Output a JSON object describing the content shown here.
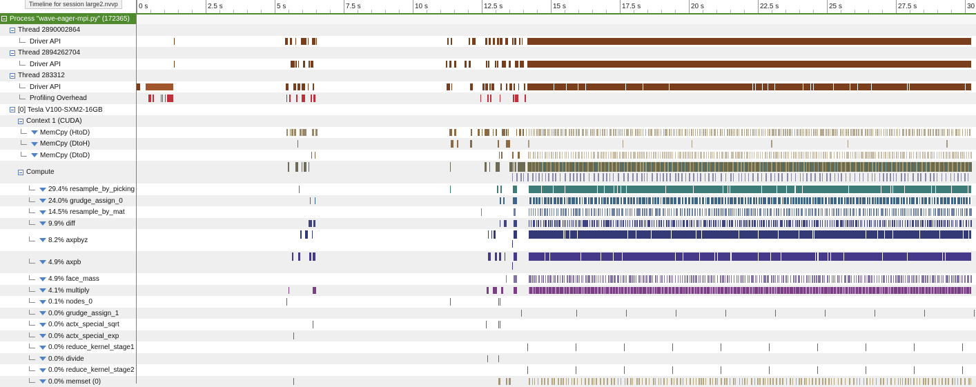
{
  "window": {
    "tooltip": "Timeline for session large2.nvvp"
  },
  "ruler": {
    "ticks": [
      "0 s",
      "2.5 s",
      "5 s",
      "7.5 s",
      "10 s",
      "12.5 s",
      "15 s",
      "17.5 s",
      "20 s",
      "22.5 s",
      "25 s",
      "27.5 s",
      "30 s"
    ]
  },
  "colors": {
    "process_header": "#4f8a2f",
    "driver_api": "#7a3e1d",
    "profiling_overhead": "#c0303a",
    "memcpy": "#b7a890",
    "compute": "#6d6a55",
    "resample_by_picking": "#3d7c78",
    "grudge_assign_0": "#3e6585",
    "resample_by_mat": "#6f7fa2",
    "diff": "#3f437f",
    "axpbyz": "#343a76",
    "axpb": "#47398a",
    "face_mass": "#8273a3",
    "multiply": "#7a3f82",
    "sparse": "#666666"
  },
  "rows": [
    {
      "label": "Process \"wave-eager-mpi.py\" (172365)",
      "kind": "header"
    },
    {
      "label": "Thread 2890002864",
      "kind": "group"
    },
    {
      "label": "Driver API",
      "kind": "leaf"
    },
    {
      "label": "Thread 2894262704",
      "kind": "group"
    },
    {
      "label": "Driver API",
      "kind": "leaf"
    },
    {
      "label": "Thread 283312",
      "kind": "group"
    },
    {
      "label": "Driver API",
      "kind": "leaf"
    },
    {
      "label": "Profiling Overhead",
      "kind": "leaf"
    },
    {
      "label": "[0] Tesla V100-SXM2-16GB",
      "kind": "group"
    },
    {
      "label": "Context 1 (CUDA)",
      "kind": "group"
    },
    {
      "label": "MemCpy (HtoD)",
      "kind": "filter"
    },
    {
      "label": "MemCpy (DtoH)",
      "kind": "filter"
    },
    {
      "label": "MemCpy (DtoD)",
      "kind": "filter"
    },
    {
      "label": "Compute",
      "kind": "group"
    },
    {
      "label": "29.4% resample_by_picking",
      "kind": "kernel"
    },
    {
      "label": "24.0% grudge_assign_0",
      "kind": "kernel"
    },
    {
      "label": "14.5% resample_by_mat",
      "kind": "kernel"
    },
    {
      "label": "9.9% diff",
      "kind": "kernel"
    },
    {
      "label": "8.2% axpbyz",
      "kind": "kernel"
    },
    {
      "label": "4.9% axpb",
      "kind": "kernel"
    },
    {
      "label": "4.9% face_mass",
      "kind": "kernel"
    },
    {
      "label": "4.1% multiply",
      "kind": "kernel"
    },
    {
      "label": "0.1% nodes_0",
      "kind": "kernel"
    },
    {
      "label": "0.0% grudge_assign_1",
      "kind": "kernel"
    },
    {
      "label": "0.0% actx_special_sqrt",
      "kind": "kernel"
    },
    {
      "label": "0.0% actx_special_exp",
      "kind": "kernel"
    },
    {
      "label": "0.0% reduce_kernel_stage1",
      "kind": "kernel"
    },
    {
      "label": "0.0% divide",
      "kind": "kernel"
    },
    {
      "label": "0.0% reduce_kernel_stage2",
      "kind": "kernel"
    },
    {
      "label": "0.0% memset (0)",
      "kind": "kernel"
    }
  ]
}
